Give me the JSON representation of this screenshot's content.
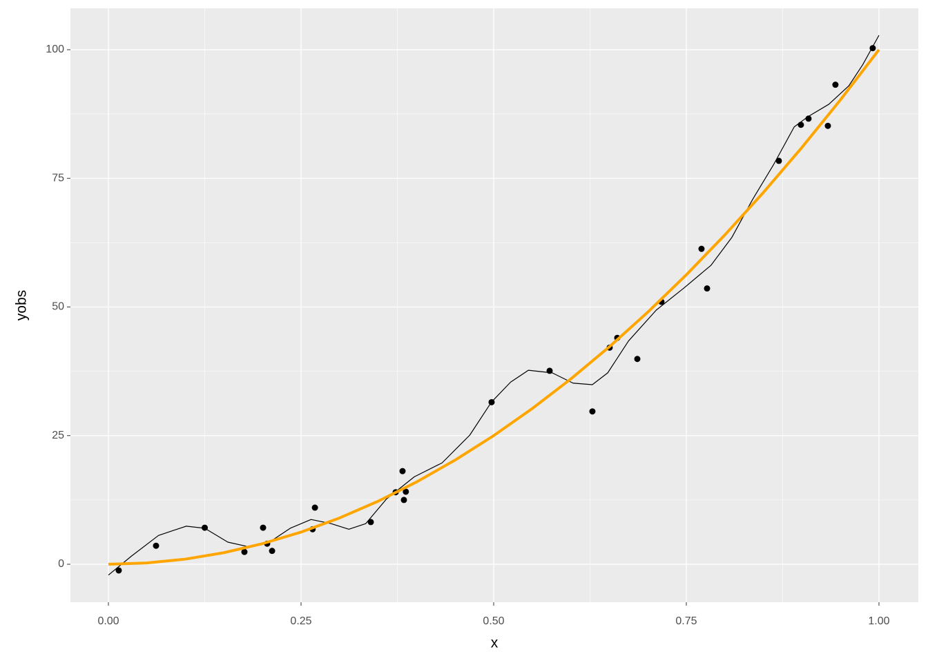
{
  "chart_data": {
    "type": "scatter",
    "x_label": "x",
    "y_label": "yobs",
    "xlim": [
      -0.0493,
      1.0511
    ],
    "ylim": [
      -7.38,
      108.05
    ],
    "xticks": [
      {
        "value": 0,
        "label": "0.00"
      },
      {
        "value": 0.25,
        "label": "0.25"
      },
      {
        "value": 0.5,
        "label": "0.50"
      },
      {
        "value": 0.75,
        "label": "0.75"
      },
      {
        "value": 1,
        "label": "1.00"
      }
    ],
    "yticks": [
      0,
      25,
      50,
      75,
      100
    ],
    "grid": true,
    "minor_grid": true,
    "background": "#ebebeb",
    "series": [
      {
        "mode": "points",
        "color": "#000000",
        "x": [
          0.0134,
          0.0618,
          0.125,
          0.1765,
          0.2007,
          0.206,
          0.2124,
          0.265,
          0.268,
          0.3405,
          0.3728,
          0.3817,
          0.3835,
          0.386,
          0.4973,
          0.5726,
          0.6281,
          0.6505,
          0.6604,
          0.6864,
          0.7177,
          0.7697,
          0.7769,
          0.8701,
          0.8987,
          0.9086,
          0.9337,
          0.9435,
          0.9919
        ],
        "y": [
          -1.2,
          3.6,
          7.1,
          2.4,
          7.1,
          4.0,
          2.6,
          6.8,
          11.0,
          8.2,
          14.0,
          18.1,
          12.5,
          14.1,
          31.5,
          37.6,
          29.7,
          42.1,
          44.0,
          39.9,
          51.0,
          61.3,
          53.6,
          78.4,
          85.4,
          86.6,
          85.2,
          93.2,
          100.3
        ]
      },
      {
        "mode": "line",
        "color": "#000000",
        "width": 1.2,
        "x": [
          0,
          0.03,
          0.065,
          0.101,
          0.125,
          0.155,
          0.182,
          0.209,
          0.236,
          0.263,
          0.289,
          0.312,
          0.334,
          0.361,
          0.397,
          0.433,
          0.469,
          0.497,
          0.522,
          0.545,
          0.576,
          0.603,
          0.628,
          0.648,
          0.675,
          0.711,
          0.747,
          0.782,
          0.809,
          0.836,
          0.863,
          0.89,
          0.908,
          0.935,
          0.961,
          0.979,
          1.0
        ],
        "y": [
          -2.1,
          1.6,
          5.6,
          7.4,
          7.0,
          4.3,
          3.4,
          4.3,
          7.0,
          8.7,
          7.9,
          6.8,
          7.9,
          12.7,
          17.0,
          19.7,
          25.1,
          31.5,
          35.4,
          37.7,
          37.2,
          35.2,
          34.9,
          37.2,
          43.4,
          49.4,
          53.7,
          58.1,
          63.5,
          70.9,
          77.6,
          85.0,
          87.0,
          89.4,
          93.0,
          97.1,
          102.8
        ]
      },
      {
        "mode": "line",
        "color": "#ffa500",
        "width": 4,
        "x": [
          0,
          0.05,
          0.1,
          0.15,
          0.2,
          0.25,
          0.3,
          0.35,
          0.4,
          0.45,
          0.5,
          0.55,
          0.6,
          0.65,
          0.7,
          0.75,
          0.8,
          0.85,
          0.9,
          0.95,
          1.0
        ],
        "y": [
          0,
          0.25,
          1,
          2.25,
          4,
          6.25,
          9,
          12.25,
          16,
          20.25,
          25,
          30.25,
          36,
          42.25,
          49,
          56.25,
          64,
          72.25,
          81,
          90.25,
          100
        ]
      }
    ]
  }
}
